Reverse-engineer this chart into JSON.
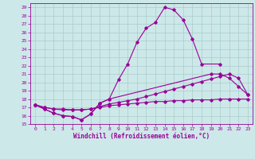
{
  "xlabel": "Windchill (Refroidissement éolien,°C)",
  "background_color": "#cde8e8",
  "grid_color": "#aacccc",
  "line_color": "#990099",
  "xlim": [
    -0.5,
    23.5
  ],
  "ylim": [
    15,
    29.5
  ],
  "xticks": [
    0,
    1,
    2,
    3,
    4,
    5,
    6,
    7,
    8,
    9,
    10,
    11,
    12,
    13,
    14,
    15,
    16,
    17,
    18,
    19,
    20,
    21,
    22,
    23
  ],
  "yticks": [
    15,
    16,
    17,
    18,
    19,
    20,
    21,
    22,
    23,
    24,
    25,
    26,
    27,
    28,
    29
  ],
  "series": [
    {
      "x": [
        0,
        1,
        2,
        3,
        4,
        5,
        6,
        7,
        8,
        9,
        10,
        11,
        12,
        13,
        14,
        15,
        16,
        17,
        18,
        20
      ],
      "y": [
        17.3,
        16.8,
        16.3,
        16.0,
        15.9,
        15.5,
        16.2,
        17.5,
        18.0,
        20.3,
        22.2,
        24.8,
        26.5,
        27.2,
        29.0,
        28.7,
        27.5,
        25.2,
        22.2,
        22.2
      ]
    },
    {
      "x": [
        0,
        1,
        2,
        3,
        4,
        5,
        6,
        7,
        8,
        19,
        20,
        21,
        22,
        23
      ],
      "y": [
        17.3,
        16.8,
        16.3,
        16.0,
        15.9,
        15.5,
        16.2,
        17.5,
        18.0,
        21.0,
        21.0,
        20.5,
        19.5,
        18.5
      ]
    },
    {
      "x": [
        0,
        1,
        2,
        3,
        4,
        5,
        6,
        7,
        8,
        9,
        10,
        11,
        12,
        13,
        14,
        15,
        16,
        17,
        18,
        19,
        20,
        21,
        22,
        23
      ],
      "y": [
        17.3,
        17.0,
        16.8,
        16.8,
        16.7,
        16.7,
        16.8,
        17.1,
        17.4,
        17.6,
        17.8,
        18.0,
        18.3,
        18.6,
        18.9,
        19.2,
        19.5,
        19.8,
        20.1,
        20.4,
        20.7,
        21.0,
        20.5,
        18.5
      ]
    },
    {
      "x": [
        0,
        1,
        2,
        3,
        4,
        5,
        6,
        7,
        8,
        9,
        10,
        11,
        12,
        13,
        14,
        15,
        16,
        17,
        18,
        19,
        20,
        21,
        22,
        23
      ],
      "y": [
        17.3,
        17.0,
        16.8,
        16.7,
        16.7,
        16.7,
        16.8,
        17.0,
        17.2,
        17.3,
        17.4,
        17.5,
        17.6,
        17.7,
        17.7,
        17.8,
        17.8,
        17.9,
        17.9,
        17.9,
        18.0,
        18.0,
        18.0,
        18.0
      ]
    }
  ]
}
